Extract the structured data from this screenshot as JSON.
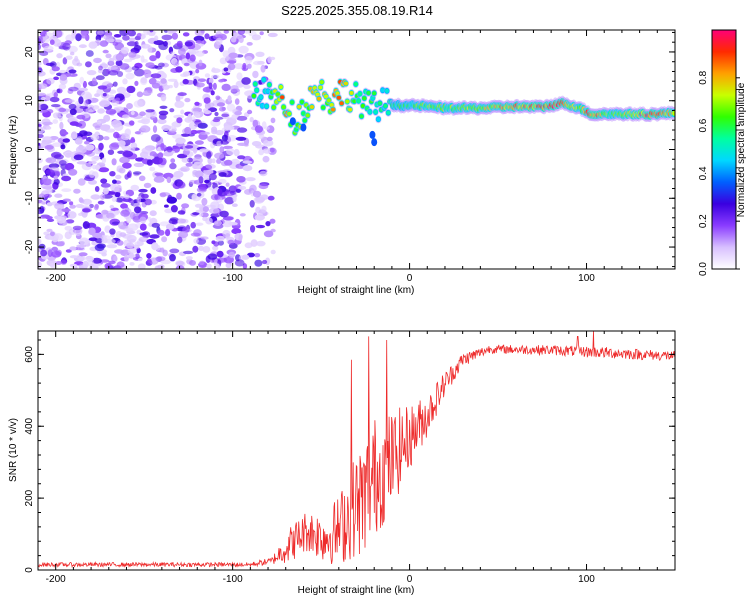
{
  "title": "S225.2025.355.08.19.R14",
  "chart_data": [
    {
      "type": "heatmap",
      "xlabel": "Height of straight line (km)",
      "ylabel": "Frequency (Hz)",
      "xlim": [
        -210,
        150
      ],
      "ylim": [
        -24.5,
        24.5
      ],
      "xticks": [
        -200,
        -100,
        0,
        100
      ],
      "yticks": [
        -20,
        -10,
        0,
        10,
        20
      ],
      "colorbar": {
        "label": "Normalized spectral amplitude",
        "range": [
          0,
          1
        ],
        "ticks": [
          "0.0",
          "0.2",
          "0.4",
          "0.6",
          "0.8"
        ],
        "tick_values": [
          0,
          0.2,
          0.4,
          0.6,
          0.8
        ],
        "stops": [
          "#ffffff",
          "#d8c0ff",
          "#8a3cff",
          "#3a00e0",
          "#0060ff",
          "#00d8ff",
          "#00ffa0",
          "#30ff00",
          "#c8ff00",
          "#ffa000",
          "#ff2a00",
          "#ff0078"
        ]
      },
      "noise_region": {
        "x": [
          -210,
          -77
        ],
        "y": [
          -24.5,
          24.5
        ],
        "level": 0.3
      },
      "signal_track": [
        {
          "x": -88,
          "y": 12.5,
          "a": 0.55
        },
        {
          "x": -80,
          "y": 11,
          "a": 0.5
        },
        {
          "x": -72,
          "y": 10,
          "a": 0.8
        },
        {
          "x": -64,
          "y": 6,
          "a": 0.65
        },
        {
          "x": -58,
          "y": 9.5,
          "a": 0.7
        },
        {
          "x": -52,
          "y": 12.5,
          "a": 0.7
        },
        {
          "x": -45,
          "y": 10,
          "a": 0.75
        },
        {
          "x": -38,
          "y": 12,
          "a": 0.8
        },
        {
          "x": -30,
          "y": 10.5,
          "a": 0.6
        },
        {
          "x": -22,
          "y": 8.5,
          "a": 0.55
        },
        {
          "x": -14,
          "y": 9.5,
          "a": 0.5
        },
        {
          "x": -6,
          "y": 9,
          "a": 0.55
        },
        {
          "x": 5,
          "y": 9,
          "a": 0.6
        },
        {
          "x": 20,
          "y": 8.5,
          "a": 0.65
        },
        {
          "x": 40,
          "y": 8.5,
          "a": 0.7
        },
        {
          "x": 60,
          "y": 8.8,
          "a": 0.8
        },
        {
          "x": 75,
          "y": 8.7,
          "a": 0.85
        },
        {
          "x": 87,
          "y": 9.5,
          "a": 0.85
        },
        {
          "x": 96,
          "y": 8.5,
          "a": 0.65
        },
        {
          "x": 103,
          "y": 7.2,
          "a": 0.9
        },
        {
          "x": 115,
          "y": 7.3,
          "a": 0.6
        },
        {
          "x": 135,
          "y": 7.2,
          "a": 0.9
        },
        {
          "x": 150,
          "y": 7.5,
          "a": 0.7
        }
      ]
    },
    {
      "type": "line",
      "xlabel": "Height of straight line (km)",
      "ylabel": "SNR (10 * v/v)",
      "xlim": [
        -210,
        150
      ],
      "ylim": [
        0,
        665
      ],
      "xticks": [
        -200,
        -100,
        0,
        100
      ],
      "yticks": [
        0,
        200,
        400,
        600
      ],
      "series": [
        {
          "color": "#ee2b2b",
          "envelope": [
            {
              "x": -210,
              "y": 15,
              "spread": 6
            },
            {
              "x": -90,
              "y": 15,
              "spread": 6
            },
            {
              "x": -78,
              "y": 25,
              "spread": 10
            },
            {
              "x": -68,
              "y": 70,
              "spread": 50
            },
            {
              "x": -58,
              "y": 110,
              "spread": 60
            },
            {
              "x": -48,
              "y": 90,
              "spread": 70
            },
            {
              "x": -40,
              "y": 110,
              "spread": 100
            },
            {
              "x": -32,
              "y": 170,
              "spread": 140
            },
            {
              "x": -26,
              "y": 200,
              "spread": 160
            },
            {
              "x": -20,
              "y": 260,
              "spread": 170
            },
            {
              "x": -14,
              "y": 280,
              "spread": 150
            },
            {
              "x": -8,
              "y": 320,
              "spread": 130
            },
            {
              "x": 0,
              "y": 370,
              "spread": 90
            },
            {
              "x": 10,
              "y": 430,
              "spread": 60
            },
            {
              "x": 20,
              "y": 520,
              "spread": 35
            },
            {
              "x": 30,
              "y": 585,
              "spread": 20
            },
            {
              "x": 45,
              "y": 615,
              "spread": 12
            },
            {
              "x": 80,
              "y": 612,
              "spread": 14
            },
            {
              "x": 110,
              "y": 605,
              "spread": 16
            },
            {
              "x": 150,
              "y": 595,
              "spread": 14
            }
          ],
          "spikes": [
            {
              "x": -23,
              "y": 650
            },
            {
              "x": -13,
              "y": 640
            },
            {
              "x": -33,
              "y": 585
            },
            {
              "x": 104,
              "y": 665
            },
            {
              "x": 95,
              "y": 650
            }
          ]
        }
      ]
    }
  ]
}
